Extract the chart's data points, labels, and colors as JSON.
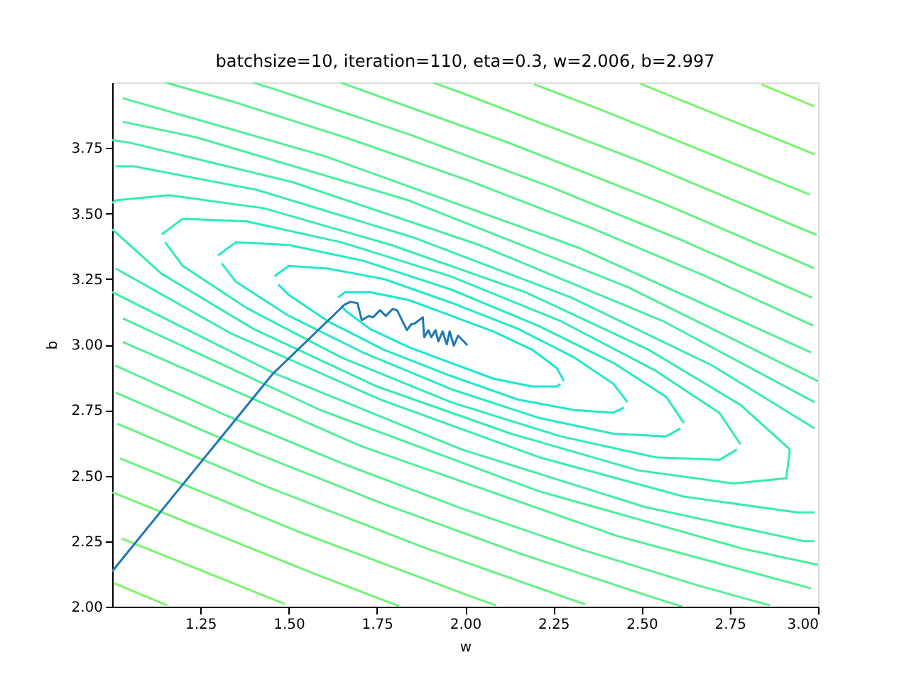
{
  "chart_data": {
    "type": "line",
    "title": "batchsize=10, iteration=110, eta=0.3, w=2.006, b=2.997",
    "xlabel": "w",
    "ylabel": "b",
    "xlim": [
      1.0,
      3.0
    ],
    "ylim": [
      2.0,
      4.0
    ],
    "xticks": [
      1.25,
      {
        "value": 1.5,
        "label": "1.50"
      },
      1.75,
      {
        "value": 2.0,
        "label": "2.00"
      },
      2.25,
      {
        "value": 2.5,
        "label": "2.50"
      },
      2.75,
      {
        "value": 3.0,
        "label": "3.00"
      }
    ],
    "yticks": [
      {
        "value": 2.0,
        "label": "2.00"
      },
      2.25,
      {
        "value": 2.5,
        "label": "2.50"
      },
      2.75,
      {
        "value": 3.0,
        "label": "3.00"
      },
      3.25,
      {
        "value": 3.5,
        "label": "3.50"
      },
      3.75
    ],
    "grid": false,
    "series": [
      {
        "color": "#19e8d0",
        "x": [
          2.28,
          2.26,
          2.19,
          2.08,
          1.96,
          1.84,
          1.73,
          1.66,
          1.64
        ],
        "values": [
          2.86,
          2.91,
          2.98,
          3.05,
          3.11,
          3.17,
          3.2,
          3.2,
          3.18
        ]
      },
      {
        "color": "#19e8d0",
        "x": [
          1.65,
          1.66,
          1.73,
          1.84,
          1.96,
          2.08,
          2.19,
          2.26,
          2.27
        ],
        "values": [
          3.15,
          3.13,
          3.06,
          2.99,
          2.93,
          2.87,
          2.84,
          2.84,
          2.85
        ]
      },
      {
        "color": "#20e9c9",
        "x": [
          2.46,
          2.42,
          2.31,
          2.15,
          1.96,
          1.77,
          1.61,
          1.5,
          1.46
        ],
        "values": [
          2.78,
          2.85,
          2.95,
          3.06,
          3.16,
          3.25,
          3.29,
          3.3,
          3.26
        ]
      },
      {
        "color": "#20e9c9",
        "x": [
          1.47,
          1.5,
          1.61,
          1.77,
          1.96,
          2.15,
          2.31,
          2.42,
          2.45
        ],
        "values": [
          3.23,
          3.19,
          3.09,
          2.98,
          2.88,
          2.79,
          2.75,
          2.74,
          2.76
        ]
      },
      {
        "color": "#27eac2",
        "x": [
          2.62,
          2.57,
          2.42,
          2.21,
          1.96,
          1.71,
          1.5,
          1.35,
          1.3
        ],
        "values": [
          2.7,
          2.8,
          2.93,
          3.07,
          3.21,
          3.32,
          3.38,
          3.39,
          3.34
        ]
      },
      {
        "color": "#27eac2",
        "x": [
          1.31,
          1.35,
          1.5,
          1.71,
          1.96,
          2.21,
          2.42,
          2.57,
          2.61
        ],
        "values": [
          3.31,
          3.24,
          3.11,
          2.97,
          2.83,
          2.72,
          2.66,
          2.65,
          2.68
        ]
      },
      {
        "color": "#2eebba",
        "x": [
          2.78,
          2.72,
          2.54,
          2.27,
          1.96,
          1.65,
          1.38,
          1.2,
          1.14
        ],
        "values": [
          2.62,
          2.74,
          2.9,
          3.09,
          3.26,
          3.39,
          3.47,
          3.48,
          3.42
        ]
      },
      {
        "color": "#2eebba",
        "x": [
          1.15,
          1.2,
          1.38,
          1.65,
          1.96,
          2.27,
          2.54,
          2.72,
          2.77
        ],
        "values": [
          3.39,
          3.3,
          3.14,
          2.95,
          2.78,
          2.65,
          2.57,
          2.56,
          2.6
        ]
      },
      {
        "color": "#34ecb3",
        "x": [
          1.0,
          1.14,
          1.4,
          1.75,
          2.13,
          2.49,
          2.76,
          2.91,
          2.92
        ],
        "values": [
          3.44,
          3.27,
          3.06,
          2.84,
          2.66,
          2.52,
          2.47,
          2.49,
          2.6
        ]
      },
      {
        "color": "#34ecb3",
        "x": [
          2.92,
          2.78,
          2.52,
          2.17,
          1.79,
          1.43,
          1.16,
          1.01,
          1.0
        ],
        "values": [
          2.6,
          2.77,
          2.98,
          3.2,
          3.38,
          3.52,
          3.57,
          3.55,
          3.54
        ]
      },
      {
        "color": "#3bedac",
        "x": [
          2.99,
          2.7,
          2.3,
          1.85,
          1.41,
          1.06,
          1.01
        ],
        "values": [
          2.68,
          2.92,
          3.18,
          3.41,
          3.59,
          3.68,
          3.68
        ]
      },
      {
        "color": "#3bedac",
        "x": [
          1.01,
          1.34,
          1.76,
          2.21,
          2.62,
          2.94,
          2.99
        ],
        "values": [
          3.29,
          3.04,
          2.79,
          2.57,
          2.42,
          2.36,
          2.36
        ]
      },
      {
        "color": "#42eea5",
        "x": [
          2.99,
          2.56,
          2.04,
          1.51,
          1.05,
          1.0
        ],
        "values": [
          2.78,
          3.09,
          3.38,
          3.62,
          3.77,
          3.78
        ]
      },
      {
        "color": "#42eea5",
        "x": [
          1.0,
          1.46,
          1.99,
          2.51,
          2.96,
          2.99
        ],
        "values": [
          3.2,
          2.89,
          2.6,
          2.38,
          2.25,
          2.25
        ]
      },
      {
        "color": "#49ef9e",
        "x": [
          3.0,
          2.46,
          1.84,
          1.24,
          1.03
        ],
        "values": [
          2.86,
          3.22,
          3.55,
          3.79,
          3.85
        ]
      },
      {
        "color": "#49ef9e",
        "x": [
          1.03,
          1.59,
          2.21,
          2.79,
          3.0
        ],
        "values": [
          3.1,
          2.75,
          2.44,
          2.22,
          2.16
        ]
      },
      {
        "color": "#50f096",
        "x": [
          2.98,
          2.32,
          1.6,
          1.03
        ],
        "values": [
          2.97,
          3.37,
          3.72,
          3.94
        ]
      },
      {
        "color": "#50f096",
        "x": [
          1.03,
          1.71,
          2.43,
          2.98
        ],
        "values": [
          3.01,
          2.61,
          2.27,
          2.07
        ]
      },
      {
        "color": "#57f08f",
        "x": [
          2.986,
          2.676,
          2.348,
          2.011,
          1.672,
          1.341,
          1.15
        ],
        "values": [
          3.072,
          3.264,
          3.45,
          3.625,
          3.785,
          3.927,
          4.0
        ]
      },
      {
        "color": "#57f08f",
        "x": [
          1.009,
          1.324,
          1.655,
          1.994,
          2.332,
          2.66,
          2.864
        ],
        "values": [
          2.92,
          2.729,
          2.545,
          2.373,
          2.217,
          2.081,
          2.005
        ]
      },
      {
        "color": "#5ef188",
        "x": [
          2.982,
          2.616,
          2.233,
          1.843,
          1.456,
          1.399
        ],
        "values": [
          3.179,
          3.397,
          3.606,
          3.801,
          3.976,
          4.0
        ]
      },
      {
        "color": "#5ef188",
        "x": [
          1.01,
          1.38,
          1.765,
          2.155,
          2.54,
          2.616
        ],
        "values": [
          2.817,
          2.6,
          2.394,
          2.203,
          2.032,
          2.0
        ]
      },
      {
        "color": "#65f281",
        "x": [
          2.989,
          2.56,
          2.117,
          1.669,
          1.647
        ],
        "values": [
          3.291,
          3.539,
          3.773,
          3.989,
          4.0
        ]
      },
      {
        "color": "#65f281",
        "x": [
          1.014,
          1.447,
          1.893,
          2.34
        ],
        "values": [
          2.698,
          2.453,
          2.221,
          2.009
        ]
      },
      {
        "color": "#6bf37a",
        "x": [
          2.996,
          2.498,
          1.986,
          1.909
        ],
        "values": [
          3.418,
          3.698,
          3.962,
          3.999
        ]
      },
      {
        "color": "#6bf37a",
        "x": [
          1.022,
          1.524,
          2.037,
          2.088
        ],
        "values": [
          2.566,
          2.288,
          2.029,
          2.005
        ]
      },
      {
        "color": "#72f472",
        "x": [
          2.976,
          2.4,
          2.195
        ],
        "values": [
          3.572,
          3.888,
          3.993
        ]
      },
      {
        "color": "#72f472",
        "x": [
          1.001,
          1.579,
          1.813
        ],
        "values": [
          2.436,
          2.122,
          2.002
        ]
      },
      {
        "color": "#79f56b",
        "x": [
          2.991,
          2.497
        ],
        "values": [
          3.725,
          3.995
        ]
      },
      {
        "color": "#79f56b",
        "x": [
          1.027,
          1.49
        ],
        "values": [
          2.26,
          2.01
        ]
      },
      {
        "color": "#80f664",
        "x": [
          2.989,
          2.839
        ],
        "values": [
          3.909,
          3.993
        ]
      },
      {
        "color": "#80f664",
        "x": [
          1.006,
          1.156
        ],
        "values": [
          2.089,
          2.005
        ]
      },
      {
        "color": "#1f77b4",
        "x": [
          1.0,
          1.454,
          1.659,
          1.675,
          1.695,
          1.707,
          1.727,
          1.739,
          1.759,
          1.775,
          1.795,
          1.807,
          1.835,
          1.847,
          1.859,
          1.88,
          1.884,
          1.896,
          1.904,
          1.916,
          1.924,
          1.936,
          1.948,
          1.956,
          1.968,
          1.98,
          1.996,
          2.006
        ],
        "values": [
          2.135,
          2.887,
          3.153,
          3.163,
          3.158,
          3.093,
          3.109,
          3.104,
          3.131,
          3.109,
          3.136,
          3.131,
          3.055,
          3.077,
          3.082,
          3.104,
          3.028,
          3.055,
          3.028,
          3.055,
          3.012,
          3.05,
          3.001,
          3.05,
          2.996,
          3.034,
          3.012,
          2.997
        ]
      }
    ]
  }
}
